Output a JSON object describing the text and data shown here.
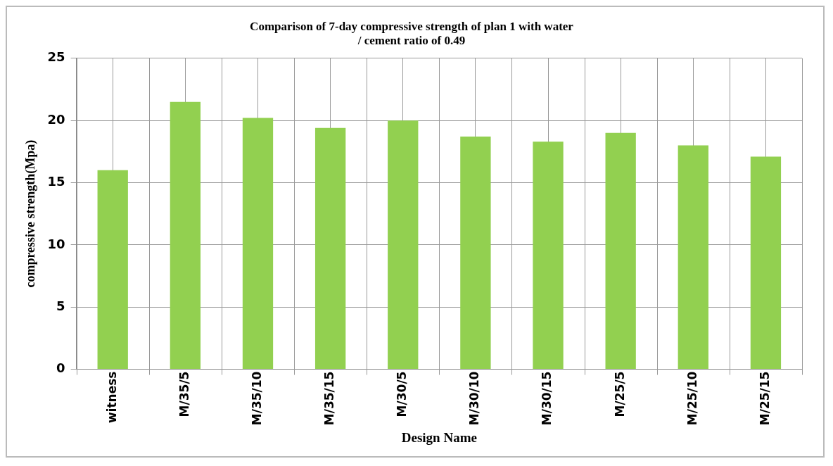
{
  "chart_data": {
    "type": "bar",
    "title": "Comparison of 7-day compressive strength of plan 1 with water / cement ratio of 0.49",
    "xlabel": "Design Name",
    "ylabel": "compressive strength(Mpa)",
    "categories": [
      "witness",
      "M/35/5",
      "M/35/10",
      "M/35/15",
      "M/30/5",
      "M/30/10",
      "M/30/15",
      "M/25/5",
      "M/25/10",
      "M/25/15"
    ],
    "values": [
      16.0,
      21.5,
      20.2,
      19.4,
      20.0,
      18.7,
      18.3,
      19.0,
      18.0,
      17.1
    ],
    "color": "#92d050",
    "ylim": [
      0,
      25
    ],
    "yticks": [
      0,
      5,
      10,
      15,
      20,
      25
    ],
    "grid": true
  }
}
